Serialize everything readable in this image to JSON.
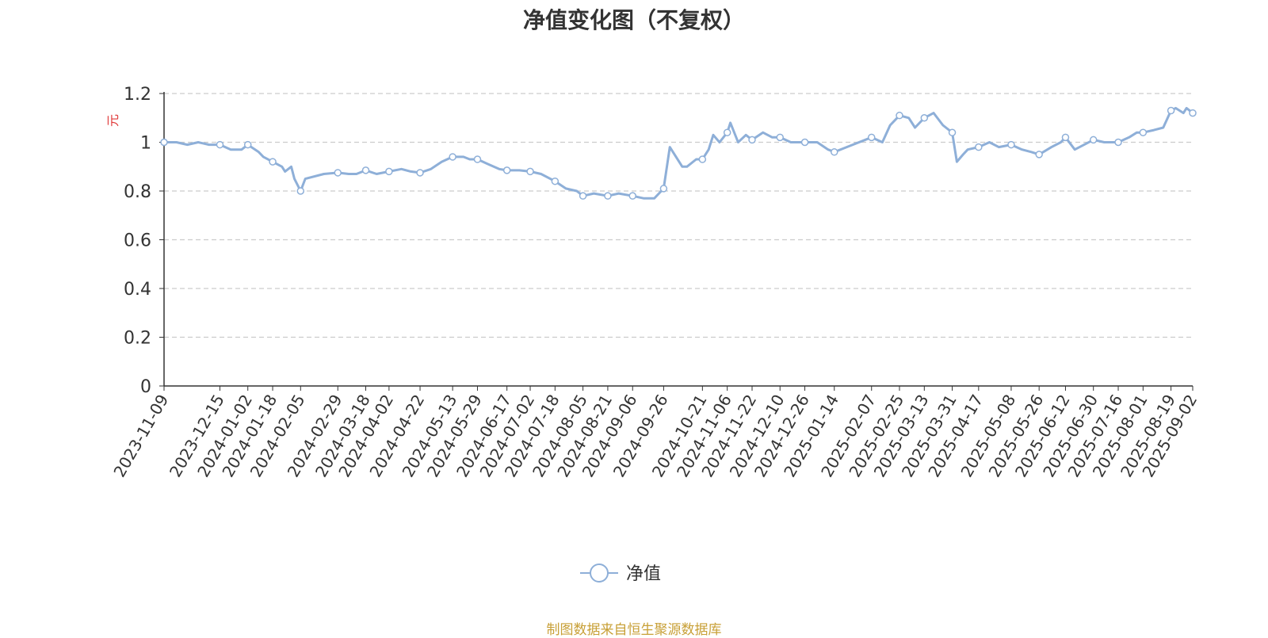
{
  "colors": {
    "line": "#8eafd8",
    "axis": "#333333",
    "grid": "#cccccc",
    "unit": "#e03a3a",
    "text": "#333333",
    "source": "#c8a037"
  },
  "source_note": "制图数据来自恒生聚源数据库",
  "chart_data": {
    "type": "line",
    "title": "净值变化图（不复权）",
    "ylabel": "元",
    "xlabel": "",
    "ylim": [
      0,
      1.2
    ],
    "yticks": [
      "0",
      "0.2",
      "0.4",
      "0.6",
      "0.8",
      "1",
      "1.2"
    ],
    "grid": true,
    "legend_position": "bottom-center",
    "x_ticks": [
      "2023-11-09",
      "2023-12-15",
      "2024-01-02",
      "2024-01-18",
      "2024-02-05",
      "2024-02-29",
      "2024-03-18",
      "2024-04-02",
      "2024-04-22",
      "2024-05-13",
      "2024-05-29",
      "2024-06-17",
      "2024-07-02",
      "2024-07-18",
      "2024-08-05",
      "2024-08-21",
      "2024-09-06",
      "2024-09-26",
      "2024-10-21",
      "2024-11-06",
      "2024-11-22",
      "2024-12-10",
      "2024-12-26",
      "2025-01-14",
      "2025-02-07",
      "2025-02-25",
      "2025-03-13",
      "2025-03-31",
      "2025-04-17",
      "2025-05-08",
      "2025-05-26",
      "2025-06-12",
      "2025-06-30",
      "2025-07-16",
      "2025-08-01",
      "2025-08-19",
      "2025-09-02"
    ],
    "series": [
      {
        "name": "净值",
        "x": [
          "2023-11-09",
          "2023-11-17",
          "2023-11-24",
          "2023-12-01",
          "2023-12-08",
          "2023-12-15",
          "2023-12-22",
          "2023-12-29",
          "2024-01-02",
          "2024-01-09",
          "2024-01-12",
          "2024-01-18",
          "2024-01-24",
          "2024-01-26",
          "2024-01-30",
          "2024-02-01",
          "2024-02-05",
          "2024-02-08",
          "2024-02-20",
          "2024-02-29",
          "2024-03-07",
          "2024-03-12",
          "2024-03-18",
          "2024-03-25",
          "2024-04-02",
          "2024-04-10",
          "2024-04-16",
          "2024-04-22",
          "2024-04-29",
          "2024-05-06",
          "2024-05-13",
          "2024-05-20",
          "2024-05-24",
          "2024-05-29",
          "2024-06-05",
          "2024-06-12",
          "2024-06-17",
          "2024-06-25",
          "2024-07-02",
          "2024-07-09",
          "2024-07-18",
          "2024-07-25",
          "2024-08-01",
          "2024-08-05",
          "2024-08-12",
          "2024-08-21",
          "2024-08-28",
          "2024-09-06",
          "2024-09-13",
          "2024-09-20",
          "2024-09-26",
          "2024-09-30",
          "2024-10-08",
          "2024-10-11",
          "2024-10-17",
          "2024-10-21",
          "2024-10-25",
          "2024-10-28",
          "2024-11-01",
          "2024-11-06",
          "2024-11-08",
          "2024-11-13",
          "2024-11-18",
          "2024-11-22",
          "2024-11-29",
          "2024-12-05",
          "2024-12-10",
          "2024-12-17",
          "2024-12-26",
          "2025-01-03",
          "2025-01-10",
          "2025-01-14",
          "2025-01-22",
          "2025-02-07",
          "2025-02-14",
          "2025-02-19",
          "2025-02-25",
          "2025-03-03",
          "2025-03-07",
          "2025-03-13",
          "2025-03-19",
          "2025-03-25",
          "2025-03-31",
          "2025-04-03",
          "2025-04-07",
          "2025-04-10",
          "2025-04-17",
          "2025-04-24",
          "2025-04-30",
          "2025-05-08",
          "2025-05-15",
          "2025-05-21",
          "2025-05-26",
          "2025-06-03",
          "2025-06-09",
          "2025-06-12",
          "2025-06-18",
          "2025-06-24",
          "2025-06-30",
          "2025-07-07",
          "2025-07-16",
          "2025-07-23",
          "2025-07-28",
          "2025-08-01",
          "2025-08-08",
          "2025-08-14",
          "2025-08-19",
          "2025-08-22",
          "2025-08-27",
          "2025-08-29",
          "2025-09-02"
        ],
        "values": [
          1.0,
          1.0,
          0.99,
          1.0,
          0.99,
          0.99,
          0.97,
          0.97,
          0.99,
          0.96,
          0.94,
          0.92,
          0.9,
          0.88,
          0.9,
          0.85,
          0.8,
          0.85,
          0.87,
          0.875,
          0.87,
          0.87,
          0.885,
          0.87,
          0.88,
          0.89,
          0.88,
          0.875,
          0.89,
          0.92,
          0.94,
          0.94,
          0.93,
          0.93,
          0.91,
          0.89,
          0.885,
          0.885,
          0.88,
          0.87,
          0.84,
          0.81,
          0.8,
          0.78,
          0.79,
          0.78,
          0.79,
          0.78,
          0.77,
          0.77,
          0.81,
          0.98,
          0.9,
          0.9,
          0.93,
          0.93,
          0.97,
          1.03,
          1.0,
          1.04,
          1.08,
          1.0,
          1.03,
          1.01,
          1.04,
          1.02,
          1.02,
          1.0,
          1.0,
          1.0,
          0.97,
          0.96,
          0.98,
          1.02,
          1.0,
          1.07,
          1.11,
          1.1,
          1.06,
          1.1,
          1.12,
          1.07,
          1.04,
          0.92,
          0.95,
          0.97,
          0.98,
          1.0,
          0.98,
          0.99,
          0.97,
          0.96,
          0.95,
          0.98,
          1.0,
          1.02,
          0.97,
          0.99,
          1.01,
          1.0,
          1.0,
          1.02,
          1.04,
          1.04,
          1.05,
          1.06,
          1.13,
          1.14,
          1.12,
          1.14,
          1.12
        ]
      }
    ]
  }
}
